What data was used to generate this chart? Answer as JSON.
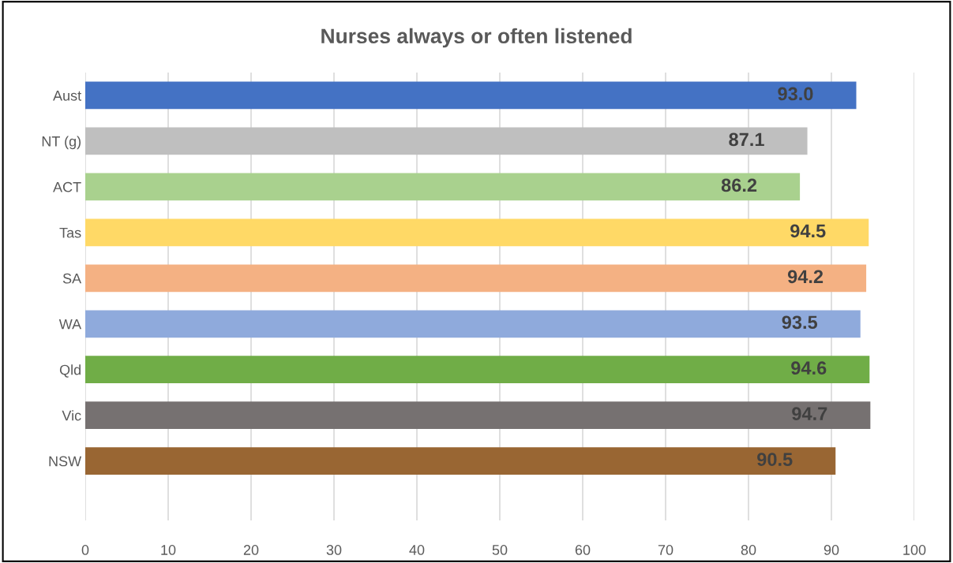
{
  "chart_data": {
    "type": "bar",
    "orientation": "horizontal",
    "title": "Nurses always or often listened",
    "categories": [
      "Aust",
      "NT (g)",
      "ACT",
      "Tas",
      "SA",
      "WA",
      "Qld",
      "Vic",
      "NSW"
    ],
    "values": [
      93.0,
      87.1,
      86.2,
      94.5,
      94.2,
      93.5,
      94.6,
      94.7,
      90.5
    ],
    "colors": [
      "#4472c4",
      "#bfbfbf",
      "#a9d18e",
      "#ffd966",
      "#f4b183",
      "#8faadc",
      "#70ad47",
      "#767171",
      "#996633"
    ],
    "value_labels": [
      "93.0",
      "87.1",
      "86.2",
      "94.5",
      "94.2",
      "93.5",
      "94.6",
      "94.7",
      "90.5"
    ],
    "xlim": [
      0,
      100
    ],
    "xticks": [
      0,
      10,
      20,
      30,
      40,
      50,
      60,
      70,
      80,
      90,
      100
    ],
    "grid": "x"
  }
}
